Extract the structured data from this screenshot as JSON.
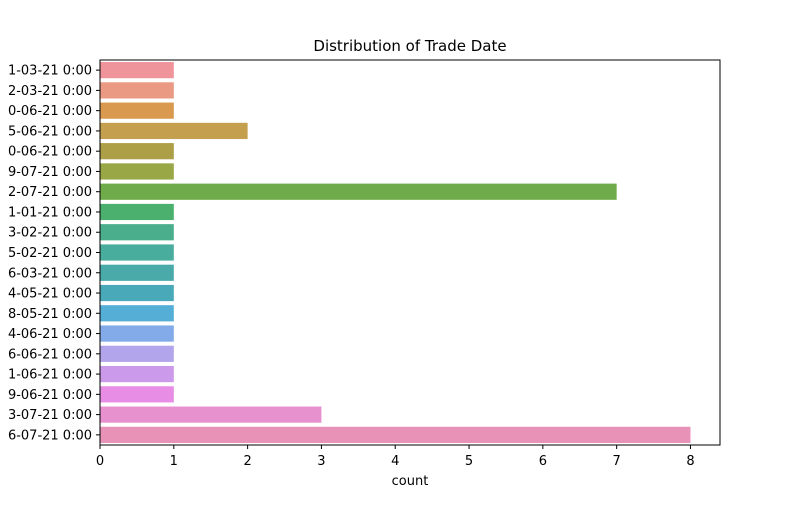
{
  "chart_data": {
    "type": "bar",
    "orientation": "horizontal",
    "title": "Distribution of Trade Date",
    "xlabel": "count",
    "ylabel": "",
    "xlim": [
      0,
      8.4
    ],
    "x_ticks": [
      0,
      1,
      2,
      3,
      4,
      5,
      6,
      7,
      8
    ],
    "grid": false,
    "categories": [
      "1-03-21 0:00",
      "2-03-21 0:00",
      "0-06-21 0:00",
      "5-06-21 0:00",
      "0-06-21 0:00",
      "9-07-21 0:00",
      "2-07-21 0:00",
      "1-01-21 0:00",
      "3-02-21 0:00",
      "5-02-21 0:00",
      "6-03-21 0:00",
      "4-05-21 0:00",
      "8-05-21 0:00",
      "4-06-21 0:00",
      "6-06-21 0:00",
      "1-06-21 0:00",
      "9-06-21 0:00",
      "3-07-21 0:00",
      "6-07-21 0:00"
    ],
    "values": [
      1,
      1,
      1,
      2,
      1,
      1,
      7,
      1,
      1,
      1,
      1,
      1,
      1,
      1,
      1,
      1,
      1,
      3,
      8
    ],
    "colors": [
      "#f0949b",
      "#ea9983",
      "#d99a4f",
      "#c49f4e",
      "#ad9f48",
      "#9aa746",
      "#6fab4a",
      "#4bb06e",
      "#4aae8d",
      "#49ad9d",
      "#4aaaa9",
      "#4aa9b8",
      "#54aed6",
      "#83abe9",
      "#b2a5eb",
      "#cc9aea",
      "#e88de6",
      "#e891cf",
      "#e892b7"
    ]
  }
}
